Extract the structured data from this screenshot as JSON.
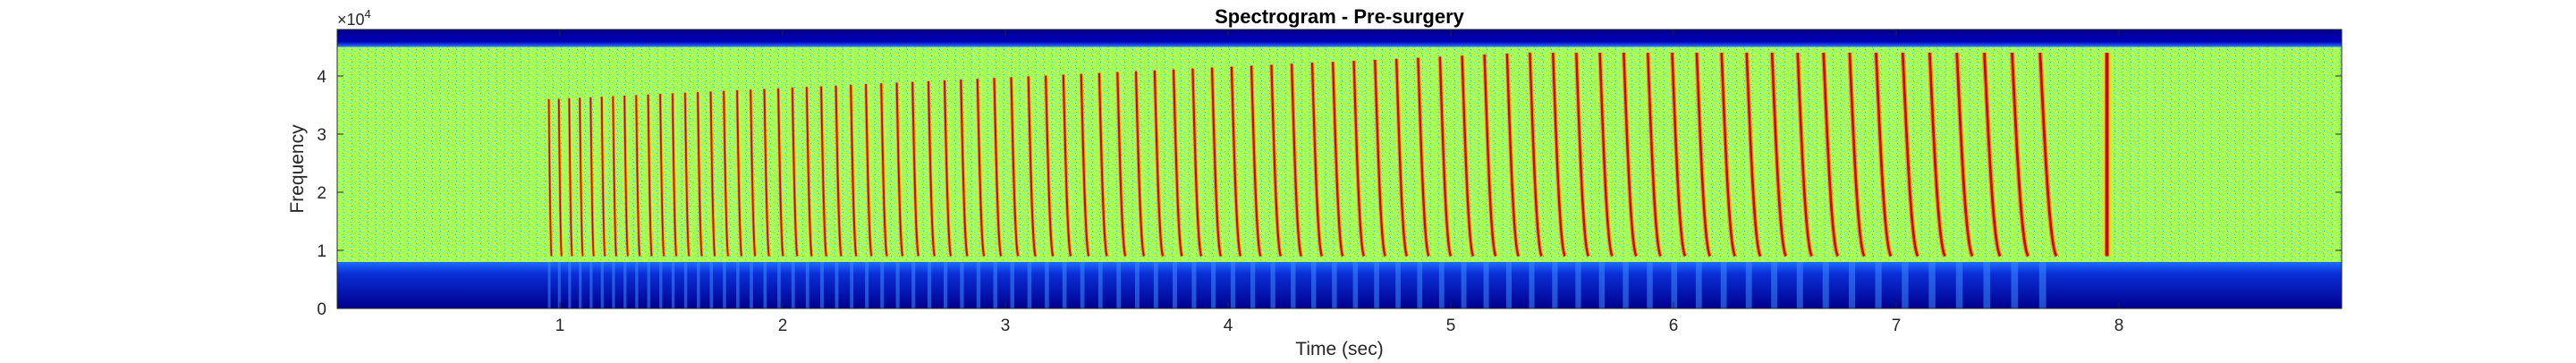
{
  "chart_data": {
    "type": "heatmap",
    "title": "Spectrogram - Pre-surgery",
    "xlabel": "Time (sec)",
    "ylabel": "Frequency",
    "y_exponent_label": "×10",
    "y_exponent_power": "4",
    "xlim": [
      0,
      9
    ],
    "ylim": [
      0,
      48000
    ],
    "x_ticks": [
      1,
      2,
      3,
      4,
      5,
      6,
      7,
      8
    ],
    "y_ticks": [
      0,
      1,
      2,
      3,
      4
    ],
    "y_tick_labels": [
      "0",
      "1",
      "2",
      "3",
      "4"
    ],
    "x_tick_labels": [
      "1",
      "2",
      "3",
      "4",
      "5",
      "6",
      "7",
      "8"
    ],
    "colormap": "jet",
    "grid": false,
    "bands": {
      "noise_floor_hz": [
        8000,
        45000
      ],
      "low_band_hz": [
        0,
        8000
      ],
      "high_band_hz": [
        45000,
        48000
      ]
    },
    "call_sequence": {
      "start_sec": 0.95,
      "end_sec": 7.95,
      "initial_interval_sec": 0.045,
      "final_interval_sec": 0.13,
      "freq_low_hz": 9000,
      "freq_high_start_hz": 36000,
      "freq_high_end_hz": 44000
    }
  }
}
